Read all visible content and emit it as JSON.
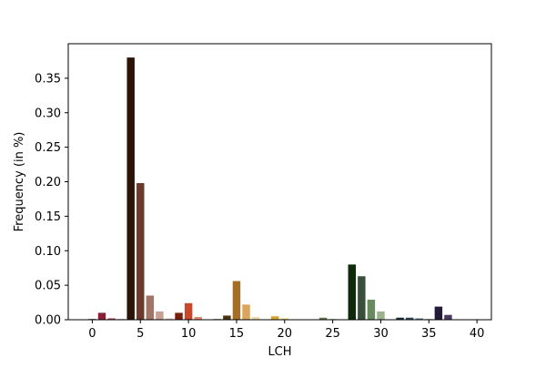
{
  "chart_data": {
    "type": "bar",
    "xlabel": "LCH",
    "ylabel": "Frequency (in %)",
    "xlim": [
      -2.5,
      41.5
    ],
    "ylim": [
      0,
      0.4
    ],
    "x_ticks": [
      0,
      5,
      10,
      15,
      20,
      25,
      30,
      35,
      40
    ],
    "x_tick_labels": [
      "0",
      "5",
      "10",
      "15",
      "20",
      "25",
      "30",
      "35",
      "40"
    ],
    "y_ticks": [
      0.0,
      0.05,
      0.1,
      0.15,
      0.2,
      0.25,
      0.3,
      0.35
    ],
    "y_tick_labels": [
      "0.00",
      "0.05",
      "0.10",
      "0.15",
      "0.20",
      "0.25",
      "0.30",
      "0.35"
    ],
    "bars": [
      {
        "x": 0,
        "value": 0.001,
        "color": "#3a1d22"
      },
      {
        "x": 1,
        "value": 0.01,
        "color": "#8b2035"
      },
      {
        "x": 2,
        "value": 0.002,
        "color": "#a0454d"
      },
      {
        "x": 3,
        "value": 0.001,
        "color": "#c48a8a"
      },
      {
        "x": 4,
        "value": 0.38,
        "color": "#2b1406"
      },
      {
        "x": 5,
        "value": 0.198,
        "color": "#6a3a2c"
      },
      {
        "x": 6,
        "value": 0.035,
        "color": "#a07466"
      },
      {
        "x": 7,
        "value": 0.012,
        "color": "#c9a092"
      },
      {
        "x": 8,
        "value": 0.002,
        "color": "#e2c9bf"
      },
      {
        "x": 9,
        "value": 0.01,
        "color": "#7a1e0c"
      },
      {
        "x": 10,
        "value": 0.024,
        "color": "#c9472a"
      },
      {
        "x": 11,
        "value": 0.004,
        "color": "#e08a6a"
      },
      {
        "x": 12,
        "value": 0.0005,
        "color": "#f0c0a8"
      },
      {
        "x": 13,
        "value": 0.001,
        "color": "#8a5a2a"
      },
      {
        "x": 14,
        "value": 0.006,
        "color": "#4a3210"
      },
      {
        "x": 15,
        "value": 0.056,
        "color": "#a56e26"
      },
      {
        "x": 16,
        "value": 0.022,
        "color": "#dca55e"
      },
      {
        "x": 17,
        "value": 0.004,
        "color": "#f0d8a8"
      },
      {
        "x": 18,
        "value": 0.0005,
        "color": "#c8a24a"
      },
      {
        "x": 19,
        "value": 0.005,
        "color": "#d4a434"
      },
      {
        "x": 20,
        "value": 0.002,
        "color": "#ecd27a"
      },
      {
        "x": 21,
        "value": 0.0005,
        "color": "#f4e6b0"
      },
      {
        "x": 22,
        "value": 0.0003,
        "color": "#6e6e3a"
      },
      {
        "x": 23,
        "value": 0.0005,
        "color": "#5a6a3a"
      },
      {
        "x": 24,
        "value": 0.003,
        "color": "#6a7a56"
      },
      {
        "x": 25,
        "value": 0.001,
        "color": "#98a888"
      },
      {
        "x": 26,
        "value": 0.0005,
        "color": "#c8d2bc"
      },
      {
        "x": 27,
        "value": 0.08,
        "color": "#0f2a0a"
      },
      {
        "x": 28,
        "value": 0.063,
        "color": "#38503a"
      },
      {
        "x": 29,
        "value": 0.029,
        "color": "#688a5e"
      },
      {
        "x": 30,
        "value": 0.012,
        "color": "#9cb28e"
      },
      {
        "x": 31,
        "value": 0.0005,
        "color": "#c0cfc0"
      },
      {
        "x": 32,
        "value": 0.003,
        "color": "#1a2e3a"
      },
      {
        "x": 33,
        "value": 0.003,
        "color": "#2e4a5a"
      },
      {
        "x": 34,
        "value": 0.002,
        "color": "#5a7a8a"
      },
      {
        "x": 35,
        "value": 0.001,
        "color": "#8aa6b4"
      },
      {
        "x": 36,
        "value": 0.019,
        "color": "#241a3a"
      },
      {
        "x": 37,
        "value": 0.007,
        "color": "#4a3a62"
      },
      {
        "x": 38,
        "value": 0.0005,
        "color": "#7a6a92"
      },
      {
        "x": 39,
        "value": 0.0005,
        "color": "#a89ac0"
      },
      {
        "x": 40,
        "value": 0.0005,
        "color": "#cfc6e0"
      }
    ]
  }
}
